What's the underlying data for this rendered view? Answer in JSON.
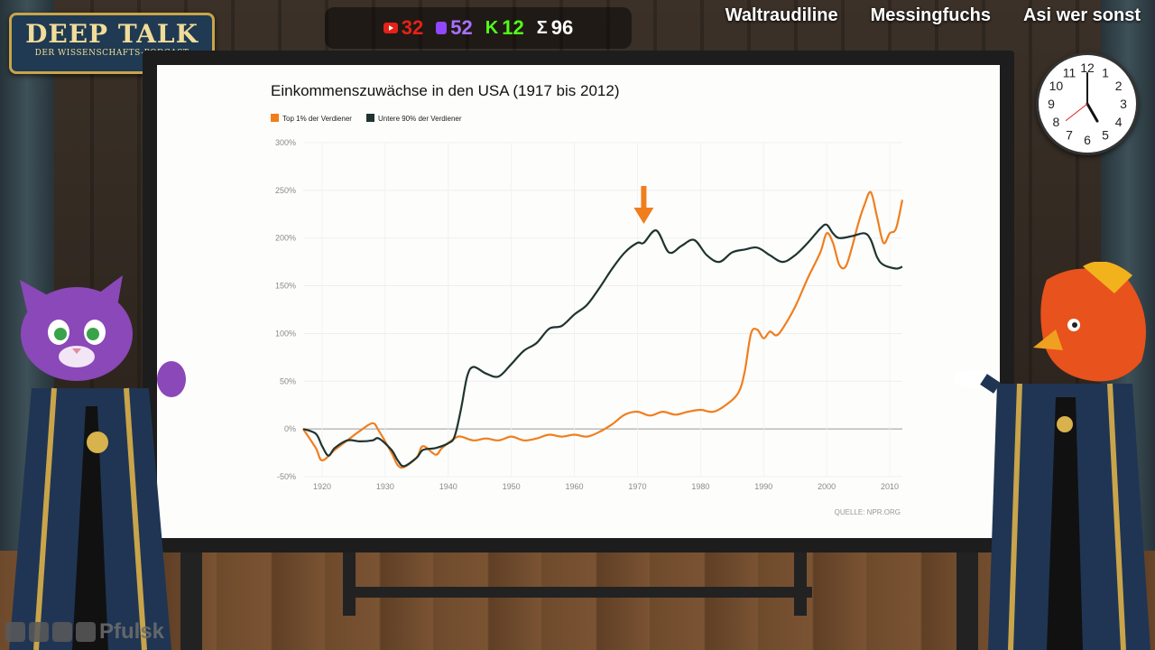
{
  "logo": {
    "title": "DEEP TALK",
    "subtitle": "DER WISSENSCHAFTS-PODCAST"
  },
  "counters": [
    {
      "icon": "youtube-icon",
      "value": "32",
      "color": "#e62117"
    },
    {
      "icon": "twitch-icon",
      "value": "52",
      "color": "#a970ff"
    },
    {
      "icon": "kick-icon",
      "value": "12",
      "color": "#53fc18"
    },
    {
      "icon": "sum-icon",
      "value": "96",
      "color": "#ffffff"
    }
  ],
  "names": [
    "Waltraudiline",
    "Messingfuchs",
    "Asi wer sonst"
  ],
  "clock": {
    "numbers": [
      "12",
      "1",
      "2",
      "3",
      "4",
      "5",
      "6",
      "7",
      "8",
      "9",
      "10",
      "11"
    ],
    "hour": 5,
    "minute": 0
  },
  "social": {
    "handle": "Pfulsk"
  },
  "chart_data": {
    "type": "line",
    "title": "Einkommenszuwächse in den USA (1917 bis 2012)",
    "source": "QUELLE: NPR.ORG",
    "xlim": [
      1917,
      2012
    ],
    "ylim": [
      -50,
      300
    ],
    "xticks": [
      1920,
      1930,
      1940,
      1950,
      1960,
      1970,
      1980,
      1990,
      2000,
      2010
    ],
    "yticks": [
      {
        "value": 300,
        "label": "300%"
      },
      {
        "value": 250,
        "label": "250%"
      },
      {
        "value": 200,
        "label": "200%"
      },
      {
        "value": 150,
        "label": "150%"
      },
      {
        "value": 100,
        "label": "100%"
      },
      {
        "value": 50,
        "label": "50%"
      },
      {
        "value": 0,
        "label": "0%"
      },
      {
        "value": -50,
        "label": "-50%"
      }
    ],
    "grid": true,
    "legend_position": "top-left",
    "annotation": {
      "type": "arrow",
      "x": 1971,
      "color": "#f07e1e"
    },
    "series": [
      {
        "name": "Top 1% der Verdiener",
        "color": "#f07e1e",
        "points": [
          [
            1917,
            0
          ],
          [
            1919,
            -20
          ],
          [
            1920,
            -33
          ],
          [
            1922,
            -22
          ],
          [
            1924,
            -12
          ],
          [
            1926,
            -2
          ],
          [
            1928,
            6
          ],
          [
            1929,
            -2
          ],
          [
            1931,
            -25
          ],
          [
            1932,
            -38
          ],
          [
            1933,
            -40
          ],
          [
            1935,
            -30
          ],
          [
            1936,
            -18
          ],
          [
            1938,
            -27
          ],
          [
            1939,
            -20
          ],
          [
            1941,
            -10
          ],
          [
            1942,
            -8
          ],
          [
            1944,
            -12
          ],
          [
            1946,
            -10
          ],
          [
            1948,
            -12
          ],
          [
            1950,
            -8
          ],
          [
            1952,
            -12
          ],
          [
            1954,
            -10
          ],
          [
            1956,
            -6
          ],
          [
            1958,
            -8
          ],
          [
            1960,
            -6
          ],
          [
            1962,
            -8
          ],
          [
            1964,
            -3
          ],
          [
            1966,
            5
          ],
          [
            1968,
            15
          ],
          [
            1970,
            18
          ],
          [
            1972,
            14
          ],
          [
            1974,
            18
          ],
          [
            1976,
            15
          ],
          [
            1978,
            18
          ],
          [
            1980,
            20
          ],
          [
            1982,
            18
          ],
          [
            1984,
            25
          ],
          [
            1986,
            38
          ],
          [
            1987,
            60
          ],
          [
            1988,
            100
          ],
          [
            1989,
            104
          ],
          [
            1990,
            95
          ],
          [
            1991,
            102
          ],
          [
            1992,
            98
          ],
          [
            1993,
            105
          ],
          [
            1995,
            128
          ],
          [
            1997,
            158
          ],
          [
            1999,
            185
          ],
          [
            2000,
            205
          ],
          [
            2001,
            195
          ],
          [
            2002,
            172
          ],
          [
            2003,
            170
          ],
          [
            2004,
            190
          ],
          [
            2005,
            215
          ],
          [
            2006,
            235
          ],
          [
            2007,
            248
          ],
          [
            2008,
            222
          ],
          [
            2009,
            195
          ],
          [
            2010,
            205
          ],
          [
            2011,
            210
          ],
          [
            2012,
            240
          ]
        ]
      },
      {
        "name": "Untere 90% der Verdiener",
        "color": "#1e3430",
        "points": [
          [
            1917,
            0
          ],
          [
            1919,
            -5
          ],
          [
            1920,
            -18
          ],
          [
            1921,
            -28
          ],
          [
            1922,
            -20
          ],
          [
            1924,
            -12
          ],
          [
            1926,
            -13
          ],
          [
            1928,
            -12
          ],
          [
            1929,
            -10
          ],
          [
            1931,
            -22
          ],
          [
            1932,
            -33
          ],
          [
            1933,
            -39
          ],
          [
            1935,
            -30
          ],
          [
            1936,
            -22
          ],
          [
            1938,
            -20
          ],
          [
            1940,
            -15
          ],
          [
            1941,
            -8
          ],
          [
            1942,
            20
          ],
          [
            1943,
            55
          ],
          [
            1944,
            65
          ],
          [
            1946,
            58
          ],
          [
            1948,
            55
          ],
          [
            1950,
            68
          ],
          [
            1952,
            82
          ],
          [
            1954,
            90
          ],
          [
            1956,
            105
          ],
          [
            1958,
            108
          ],
          [
            1960,
            120
          ],
          [
            1962,
            130
          ],
          [
            1964,
            148
          ],
          [
            1966,
            168
          ],
          [
            1968,
            185
          ],
          [
            1970,
            195
          ],
          [
            1971,
            195
          ],
          [
            1973,
            208
          ],
          [
            1975,
            185
          ],
          [
            1977,
            192
          ],
          [
            1979,
            198
          ],
          [
            1981,
            182
          ],
          [
            1983,
            175
          ],
          [
            1985,
            185
          ],
          [
            1987,
            188
          ],
          [
            1989,
            190
          ],
          [
            1991,
            182
          ],
          [
            1993,
            175
          ],
          [
            1995,
            182
          ],
          [
            1997,
            195
          ],
          [
            1999,
            210
          ],
          [
            2000,
            214
          ],
          [
            2001,
            205
          ],
          [
            2002,
            200
          ],
          [
            2004,
            202
          ],
          [
            2006,
            205
          ],
          [
            2007,
            198
          ],
          [
            2008,
            180
          ],
          [
            2009,
            172
          ],
          [
            2011,
            168
          ],
          [
            2012,
            170
          ]
        ]
      }
    ]
  }
}
